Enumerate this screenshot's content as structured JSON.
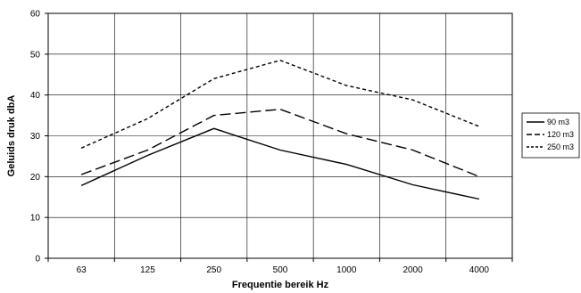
{
  "chart_data": {
    "type": "line",
    "categories": [
      "63",
      "125",
      "250",
      "500",
      "1000",
      "2000",
      "4000"
    ],
    "xlabel": "Frequentie bereik Hz",
    "ylabel": "Geluids druk dbA",
    "ylim": [
      0,
      60
    ],
    "yticks": [
      0,
      10,
      20,
      30,
      40,
      50,
      60
    ],
    "grid": true,
    "legend_position": "right",
    "series": [
      {
        "name": "90 m3",
        "dash": "solid",
        "color": "#000000",
        "values": [
          17.8,
          25.2,
          31.8,
          26.5,
          23.0,
          18.0,
          14.5
        ]
      },
      {
        "name": "120 m3",
        "dash": "dashed",
        "color": "#000000",
        "values": [
          20.5,
          26.5,
          35.0,
          36.5,
          30.5,
          26.5,
          20.0
        ]
      },
      {
        "name": "250 m3",
        "dash": "dotted",
        "color": "#000000",
        "values": [
          27.0,
          34.2,
          44.0,
          48.5,
          42.3,
          38.8,
          32.3
        ]
      }
    ]
  }
}
